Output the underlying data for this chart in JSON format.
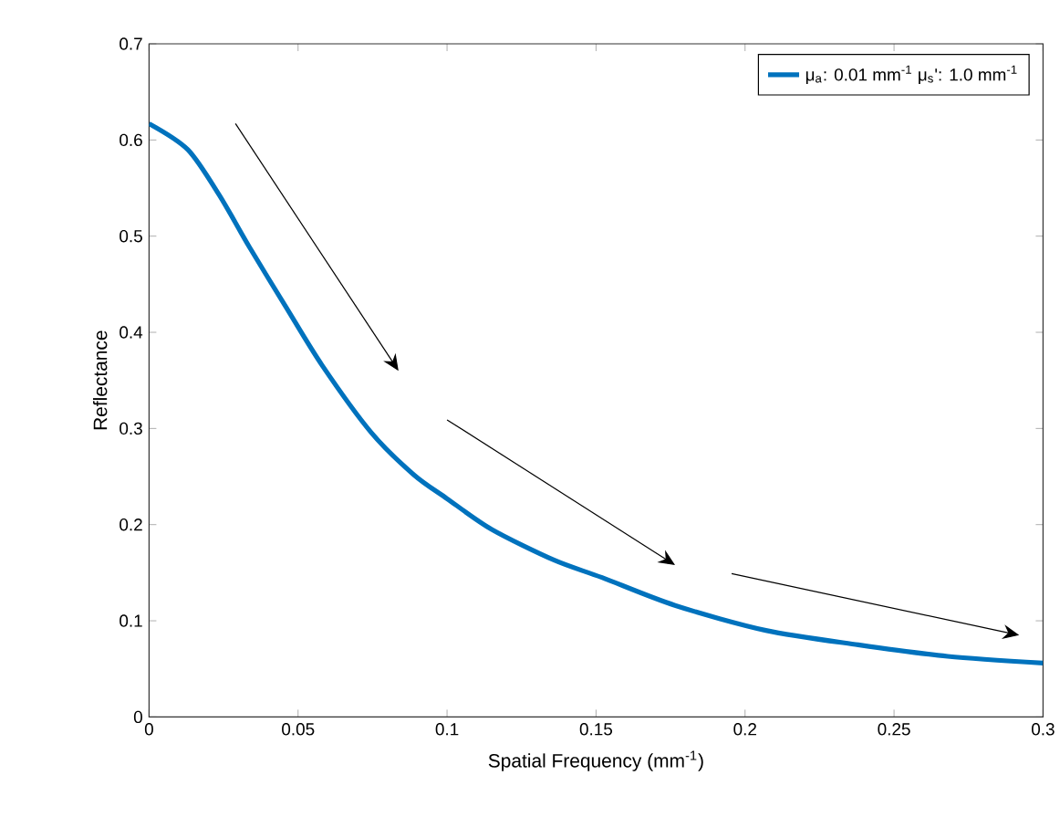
{
  "chart_data": {
    "type": "line",
    "xlabel": "Spatial Frequency (mm$^{-1}$)",
    "ylabel": "Reflectance",
    "xlim": [
      0,
      0.3
    ],
    "ylim": [
      0,
      0.7
    ],
    "xticks": [
      0,
      0.05,
      0.1,
      0.15,
      0.2,
      0.25,
      0.3
    ],
    "yticks": [
      0,
      0.1,
      0.2,
      0.3,
      0.4,
      0.5,
      0.6,
      0.7
    ],
    "grid": false,
    "legend": "top right",
    "marker": "none",
    "line_style": "solid",
    "series": [
      {
        "name": "μ$_{a}$: 0.01 mm$^{-1}$ μ$_{s}$': 1.0 mm$^{-1}$",
        "color": "#0072bd",
        "x": [
          0,
          0.013,
          0.0235,
          0.0336,
          0.046,
          0.058,
          0.0745,
          0.0888,
          0.1,
          0.115,
          0.136,
          0.152,
          0.1765,
          0.207,
          0.238,
          0.268,
          0.3
        ],
        "values": [
          0.617,
          0.59,
          0.543,
          0.489,
          0.426,
          0.366,
          0.296,
          0.252,
          0.227,
          0.195,
          0.163,
          0.145,
          0.116,
          0.09,
          0.075,
          0.063,
          0.056
        ]
      }
    ]
  }
}
